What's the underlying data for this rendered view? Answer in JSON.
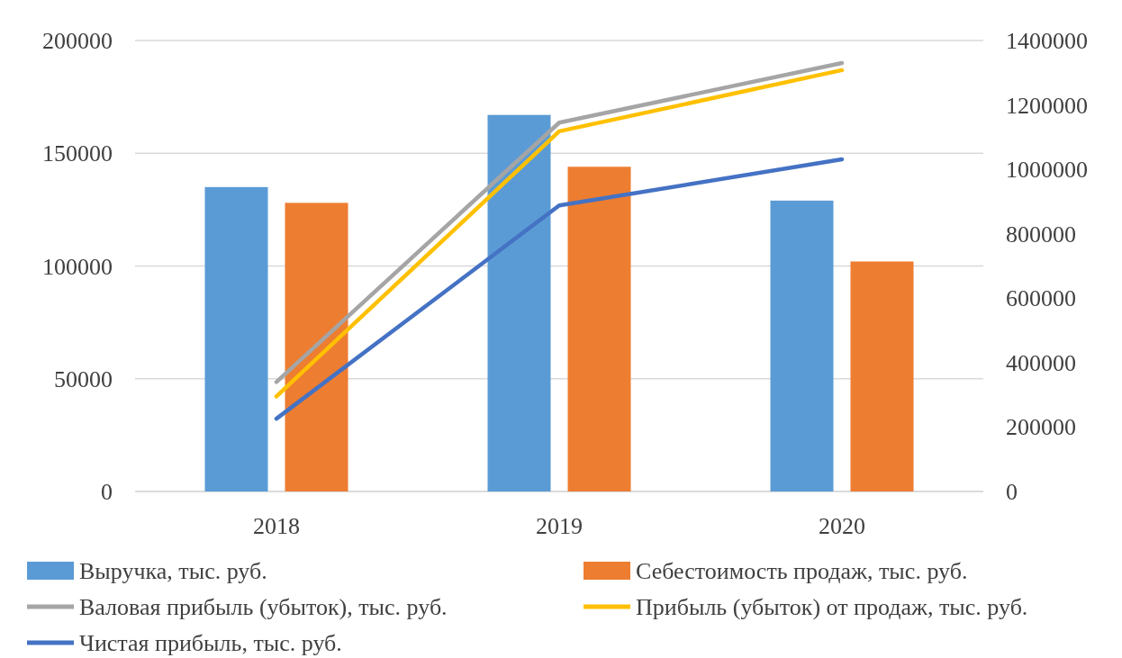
{
  "chart_data": {
    "type": "bar",
    "categories": [
      "2018",
      "2019",
      "2020"
    ],
    "series": [
      {
        "name": "Выручка, тыс. руб.",
        "color": "#5b9bd5",
        "values": [
          135000,
          167000,
          129000
        ]
      },
      {
        "name": "Себестоимость продаж, тыс. руб.",
        "color": "#ed7d31",
        "values": [
          128000,
          144000,
          102000
        ]
      },
      {
        "name": "Валовая прибыль (убыток), тыс. руб.",
        "color": "#a5a5a5",
        "type": "line",
        "axis": "y2",
        "values": [
          340000,
          1145000,
          1330000
        ]
      },
      {
        "name": "Прибыль (убыток) от продаж, тыс. руб.",
        "color": "#ffc000",
        "type": "line",
        "axis": "y2",
        "values": [
          295000,
          1118000,
          1308000
        ]
      },
      {
        "name": "Чистая прибыль, тыс. руб.",
        "color": "#4472c4",
        "type": "line",
        "axis": "y2",
        "values": [
          226000,
          888000,
          1031000
        ]
      }
    ],
    "ylim": [
      0,
      200000
    ],
    "yticks": [
      0,
      50000,
      100000,
      150000,
      200000
    ],
    "y2lim": [
      0,
      1400000
    ],
    "y2ticks": [
      0,
      200000,
      400000,
      600000,
      800000,
      1000000,
      1200000,
      1400000
    ],
    "grid": "y",
    "legend": "bottom",
    "marker": "none",
    "line_style": "solid"
  }
}
